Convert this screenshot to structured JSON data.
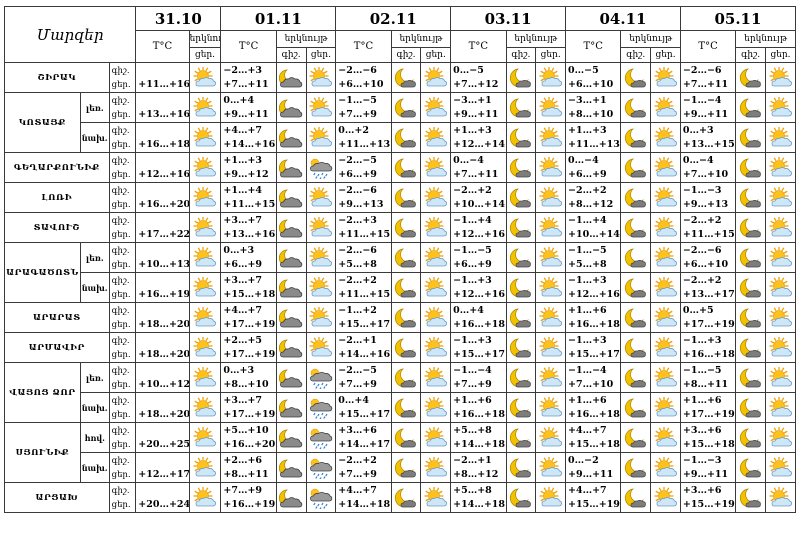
{
  "header": {
    "region_label": "Մարզեր",
    "temp_label": "T°C",
    "weather_label": "երկնույթ",
    "day_short": "ցեր.",
    "night_short": "գիշ."
  },
  "days": [
    {
      "date": "31.10",
      "sub": [
        "ցեր."
      ]
    },
    {
      "date": "01.11",
      "sub": [
        "գիշ.",
        "ցեր."
      ]
    },
    {
      "date": "02.11",
      "sub": [
        "գիշ.",
        "ցեր."
      ]
    },
    {
      "date": "03.11",
      "sub": [
        "գիշ.",
        "ցեր."
      ]
    },
    {
      "date": "04.11",
      "sub": [
        "գիշ.",
        "ցեր."
      ]
    },
    {
      "date": "05.11",
      "sub": [
        "գիշ.",
        "ցեր."
      ]
    }
  ],
  "row_labels": {
    "night": "գիշ.",
    "day": "ցեր."
  },
  "rows": [
    {
      "name": "ՇԻՐԱԿ",
      "sub": "",
      "d0": {
        "night": "",
        "day": "+11…+16",
        "icon": "sunny-cloud-icon"
      },
      "days": [
        {
          "night": "−2…+3",
          "day": "+7…+11",
          "i1": "moon-cloud-icon",
          "i2": "sunny-cloud-icon"
        },
        {
          "night": "−2…−6",
          "day": "+6…+10",
          "i1": "moon-icon",
          "i2": "sunny-cloud-icon"
        },
        {
          "night": "0…−5",
          "day": "+7…+12",
          "i1": "moon-icon",
          "i2": "sunny-cloud-icon"
        },
        {
          "night": "0…−5",
          "day": "+6…+10",
          "i1": "moon-icon",
          "i2": "sunny-cloud-icon"
        },
        {
          "night": "−2…−6",
          "day": "+7…+11",
          "i1": "moon-icon",
          "i2": "sunny-cloud-icon"
        }
      ]
    },
    {
      "name": "ԿՈՏԱՅՔ",
      "sub": "լեռ.",
      "d0": {
        "night": "",
        "day": "+13…+16",
        "icon": "sunny-cloud-icon"
      },
      "days": [
        {
          "night": "0…+4",
          "day": "+9…+11",
          "i1": "moon-cloud-icon",
          "i2": "sunny-cloud-icon"
        },
        {
          "night": "−1…−5",
          "day": "+7…+9",
          "i1": "moon-icon",
          "i2": "sunny-cloud-icon"
        },
        {
          "night": "−3…+1",
          "day": "+9…+11",
          "i1": "moon-icon",
          "i2": "sunny-cloud-icon"
        },
        {
          "night": "−3…+1",
          "day": "+8…+10",
          "i1": "moon-icon",
          "i2": "sunny-cloud-icon"
        },
        {
          "night": "−1…−4",
          "day": "+9…+11",
          "i1": "moon-icon",
          "i2": "sunny-cloud-icon"
        }
      ]
    },
    {
      "name": "",
      "sub": "նախ.",
      "d0": {
        "night": "",
        "day": "+16…+18",
        "icon": "sunny-cloud-icon"
      },
      "days": [
        {
          "night": "+4…+7",
          "day": "+14…+16",
          "i1": "moon-cloud-icon",
          "i2": "sunny-cloud-icon"
        },
        {
          "night": "0…+2",
          "day": "+11…+13",
          "i1": "moon-icon",
          "i2": "sunny-cloud-icon"
        },
        {
          "night": "+1…+3",
          "day": "+12…+14",
          "i1": "moon-icon",
          "i2": "sunny-cloud-icon"
        },
        {
          "night": "+1…+3",
          "day": "+11…+13",
          "i1": "moon-icon",
          "i2": "sunny-cloud-icon"
        },
        {
          "night": "0…+3",
          "day": "+13…+15",
          "i1": "moon-icon",
          "i2": "sunny-cloud-icon"
        }
      ]
    },
    {
      "name": "ԳԵՂԱՐՔՈՒՆԻՔ",
      "sub": "",
      "d0": {
        "night": "",
        "day": "+12…+16",
        "icon": "sunny-cloud-icon"
      },
      "days": [
        {
          "night": "+1…+3",
          "day": "+9…+12",
          "i1": "moon-cloud-icon",
          "i2": "rain-icon"
        },
        {
          "night": "−2…−5",
          "day": "+6…+9",
          "i1": "moon-icon",
          "i2": "sunny-cloud-icon"
        },
        {
          "night": "0…−4",
          "day": "+7…+11",
          "i1": "moon-icon",
          "i2": "sunny-cloud-icon"
        },
        {
          "night": "0…−4",
          "day": "+6…+9",
          "i1": "moon-icon",
          "i2": "sunny-cloud-icon"
        },
        {
          "night": "0…−4",
          "day": "+7…+10",
          "i1": "moon-icon",
          "i2": "sunny-cloud-icon"
        }
      ]
    },
    {
      "name": "ԼՈՌԻ",
      "sub": "",
      "d0": {
        "night": "",
        "day": "+16…+20",
        "icon": "sunny-cloud-icon"
      },
      "days": [
        {
          "night": "+1…+4",
          "day": "+11…+15",
          "i1": "moon-cloud-icon",
          "i2": "sunny-cloud-icon"
        },
        {
          "night": "−2…−6",
          "day": "+9…+13",
          "i1": "moon-icon",
          "i2": "sunny-cloud-icon"
        },
        {
          "night": "−2…+2",
          "day": "+10…+14",
          "i1": "moon-icon",
          "i2": "sunny-cloud-icon"
        },
        {
          "night": "−2…+2",
          "day": "+8…+12",
          "i1": "moon-icon",
          "i2": "sunny-cloud-icon"
        },
        {
          "night": "−1…−3",
          "day": "+9…+13",
          "i1": "moon-icon",
          "i2": "sunny-cloud-icon"
        }
      ]
    },
    {
      "name": "ՏԱՎՈՒՇ",
      "sub": "",
      "d0": {
        "night": "",
        "day": "+17…+22",
        "icon": "sunny-cloud-icon"
      },
      "days": [
        {
          "night": "+3…+7",
          "day": "+13…+16",
          "i1": "moon-cloud-icon",
          "i2": "sunny-cloud-icon"
        },
        {
          "night": "−2…+3",
          "day": "+11…+15",
          "i1": "moon-icon",
          "i2": "sunny-cloud-icon"
        },
        {
          "night": "−1…+4",
          "day": "+12…+16",
          "i1": "moon-icon",
          "i2": "sunny-cloud-icon"
        },
        {
          "night": "−1…+4",
          "day": "+10…+14",
          "i1": "moon-icon",
          "i2": "sunny-cloud-icon"
        },
        {
          "night": "−2…+2",
          "day": "+11…+15",
          "i1": "moon-icon",
          "i2": "sunny-cloud-icon"
        }
      ]
    },
    {
      "name": "ԱՐԱԳԱԾՈՏՆ",
      "sub": "լեռ.",
      "d0": {
        "night": "",
        "day": "+10…+13",
        "icon": "sunny-cloud-icon"
      },
      "days": [
        {
          "night": "0…+3",
          "day": "+6…+9",
          "i1": "moon-cloud-icon",
          "i2": "sunny-cloud-icon"
        },
        {
          "night": "−2…−6",
          "day": "+5…+8",
          "i1": "moon-icon",
          "i2": "sunny-cloud-icon"
        },
        {
          "night": "−1…−5",
          "day": "+6…+9",
          "i1": "moon-icon",
          "i2": "sunny-cloud-icon"
        },
        {
          "night": "−1…−5",
          "day": "+5…+8",
          "i1": "moon-icon",
          "i2": "sunny-cloud-icon"
        },
        {
          "night": "−2…−6",
          "day": "+6…+10",
          "i1": "moon-icon",
          "i2": "sunny-cloud-icon"
        }
      ]
    },
    {
      "name": "",
      "sub": "նախ.",
      "d0": {
        "night": "",
        "day": "+16…+19",
        "icon": "sunny-cloud-icon"
      },
      "days": [
        {
          "night": "+3…+7",
          "day": "+15…+18",
          "i1": "moon-cloud-icon",
          "i2": "sunny-cloud-icon"
        },
        {
          "night": "−2…+2",
          "day": "+11…+15",
          "i1": "moon-icon",
          "i2": "sunny-cloud-icon"
        },
        {
          "night": "−1…+3",
          "day": "+12…+16",
          "i1": "moon-icon",
          "i2": "sunny-cloud-icon"
        },
        {
          "night": "−1…+3",
          "day": "+12…+16",
          "i1": "moon-icon",
          "i2": "sunny-cloud-icon"
        },
        {
          "night": "−2…+2",
          "day": "+13…+17",
          "i1": "moon-icon",
          "i2": "sunny-cloud-icon"
        }
      ]
    },
    {
      "name": "ԱՐԱՐԱՏ",
      "sub": "",
      "d0": {
        "night": "",
        "day": "+18…+20",
        "icon": "sunny-cloud-icon"
      },
      "days": [
        {
          "night": "+4…+7",
          "day": "+17…+19",
          "i1": "moon-cloud-icon",
          "i2": "sunny-cloud-icon"
        },
        {
          "night": "−1…+2",
          "day": "+15…+17",
          "i1": "moon-icon",
          "i2": "sunny-cloud-icon"
        },
        {
          "night": "0…+4",
          "day": "+16…+18",
          "i1": "moon-icon",
          "i2": "sunny-cloud-icon"
        },
        {
          "night": "+1…+6",
          "day": "+16…+18",
          "i1": "moon-icon",
          "i2": "sunny-cloud-icon"
        },
        {
          "night": "0…+5",
          "day": "+17…+19",
          "i1": "moon-icon",
          "i2": "sunny-cloud-icon"
        }
      ]
    },
    {
      "name": "ԱՐՄԱՎԻՐ",
      "sub": "",
      "d0": {
        "night": "",
        "day": "+18…+20",
        "icon": "sunny-cloud-icon"
      },
      "days": [
        {
          "night": "+2…+5",
          "day": "+17…+19",
          "i1": "moon-cloud-icon",
          "i2": "sunny-cloud-icon"
        },
        {
          "night": "−2…+1",
          "day": "+14…+16",
          "i1": "moon-icon",
          "i2": "sunny-cloud-icon"
        },
        {
          "night": "−1…+3",
          "day": "+15…+17",
          "i1": "moon-icon",
          "i2": "sunny-cloud-icon"
        },
        {
          "night": "−1…+3",
          "day": "+15…+17",
          "i1": "moon-icon",
          "i2": "sunny-cloud-icon"
        },
        {
          "night": "−1…+3",
          "day": "+16…+18",
          "i1": "moon-icon",
          "i2": "sunny-cloud-icon"
        }
      ]
    },
    {
      "name": "ՎԱՅՈՑ ՁՈՐ",
      "sub": "լեռ.",
      "d0": {
        "night": "",
        "day": "+10…+12",
        "icon": "sunny-cloud-icon"
      },
      "days": [
        {
          "night": "0…+3",
          "day": "+8…+10",
          "i1": "moon-cloud-icon",
          "i2": "rain-icon"
        },
        {
          "night": "−2…−5",
          "day": "+7…+9",
          "i1": "moon-icon",
          "i2": "sunny-cloud-icon"
        },
        {
          "night": "−1…−4",
          "day": "+7…+9",
          "i1": "moon-icon",
          "i2": "sunny-cloud-icon"
        },
        {
          "night": "−1…−4",
          "day": "+7…+10",
          "i1": "moon-icon",
          "i2": "sunny-cloud-icon"
        },
        {
          "night": "−1…−5",
          "day": "+8…+11",
          "i1": "moon-icon",
          "i2": "sunny-cloud-icon"
        }
      ]
    },
    {
      "name": "",
      "sub": "նախ.",
      "d0": {
        "night": "",
        "day": "+18…+20",
        "icon": "sunny-cloud-icon"
      },
      "days": [
        {
          "night": "+3…+7",
          "day": "+17…+19",
          "i1": "moon-cloud-icon",
          "i2": "rain-icon"
        },
        {
          "night": "0…+4",
          "day": "+15…+17",
          "i1": "moon-icon",
          "i2": "sunny-cloud-icon"
        },
        {
          "night": "+1…+6",
          "day": "+16…+18",
          "i1": "moon-icon",
          "i2": "sunny-cloud-icon"
        },
        {
          "night": "+1…+6",
          "day": "+16…+18",
          "i1": "moon-icon",
          "i2": "sunny-cloud-icon"
        },
        {
          "night": "+1…+6",
          "day": "+17…+19",
          "i1": "moon-icon",
          "i2": "sunny-cloud-icon"
        }
      ]
    },
    {
      "name": "ՍՅՈՒՆԻՔ",
      "sub": "հով.",
      "d0": {
        "night": "",
        "day": "+20…+25",
        "icon": "sunny-cloud-icon"
      },
      "days": [
        {
          "night": "+5…+10",
          "day": "+16…+20",
          "i1": "moon-cloud-icon",
          "i2": "rain-icon"
        },
        {
          "night": "+3…+6",
          "day": "+14…+17",
          "i1": "moon-icon",
          "i2": "sunny-cloud-icon"
        },
        {
          "night": "+5…+8",
          "day": "+14…+18",
          "i1": "moon-icon",
          "i2": "sunny-cloud-icon"
        },
        {
          "night": "+4…+7",
          "day": "+15…+18",
          "i1": "moon-icon",
          "i2": "sunny-cloud-icon"
        },
        {
          "night": "+3…+6",
          "day": "+15…+18",
          "i1": "moon-icon",
          "i2": "sunny-cloud-icon"
        }
      ]
    },
    {
      "name": "",
      "sub": "նախ.",
      "d0": {
        "night": "",
        "day": "+12…+17",
        "icon": "sunny-cloud-icon"
      },
      "days": [
        {
          "night": "+2…+6",
          "day": "+8…+11",
          "i1": "moon-cloud-icon",
          "i2": "rain-icon"
        },
        {
          "night": "−2…+2",
          "day": "+7…+9",
          "i1": "moon-icon",
          "i2": "sunny-cloud-icon"
        },
        {
          "night": "−2…+1",
          "day": "+8…+12",
          "i1": "moon-icon",
          "i2": "sunny-cloud-icon"
        },
        {
          "night": "0…−2",
          "day": "+9…+11",
          "i1": "moon-icon",
          "i2": "sunny-cloud-icon"
        },
        {
          "night": "−1…−3",
          "day": "+9…+11",
          "i1": "moon-icon",
          "i2": "sunny-cloud-icon"
        }
      ]
    },
    {
      "name": "ԱՐՑԱԽ",
      "sub": "",
      "d0": {
        "night": "",
        "day": "+20…+24",
        "icon": "sunny-cloud-icon"
      },
      "days": [
        {
          "night": "+7…+9",
          "day": "+16…+19",
          "i1": "moon-cloud-icon",
          "i2": "rain-icon"
        },
        {
          "night": "+4…+7",
          "day": "+14…+18",
          "i1": "moon-icon",
          "i2": "sunny-cloud-icon"
        },
        {
          "night": "+5…+8",
          "day": "+14…+18",
          "i1": "moon-icon",
          "i2": "sunny-cloud-icon"
        },
        {
          "night": "+4…+7",
          "day": "+15…+19",
          "i1": "moon-icon",
          "i2": "sunny-cloud-icon"
        },
        {
          "night": "+3…+6",
          "day": "+15…+19",
          "i1": "moon-icon",
          "i2": "sunny-cloud-icon"
        }
      ]
    }
  ]
}
